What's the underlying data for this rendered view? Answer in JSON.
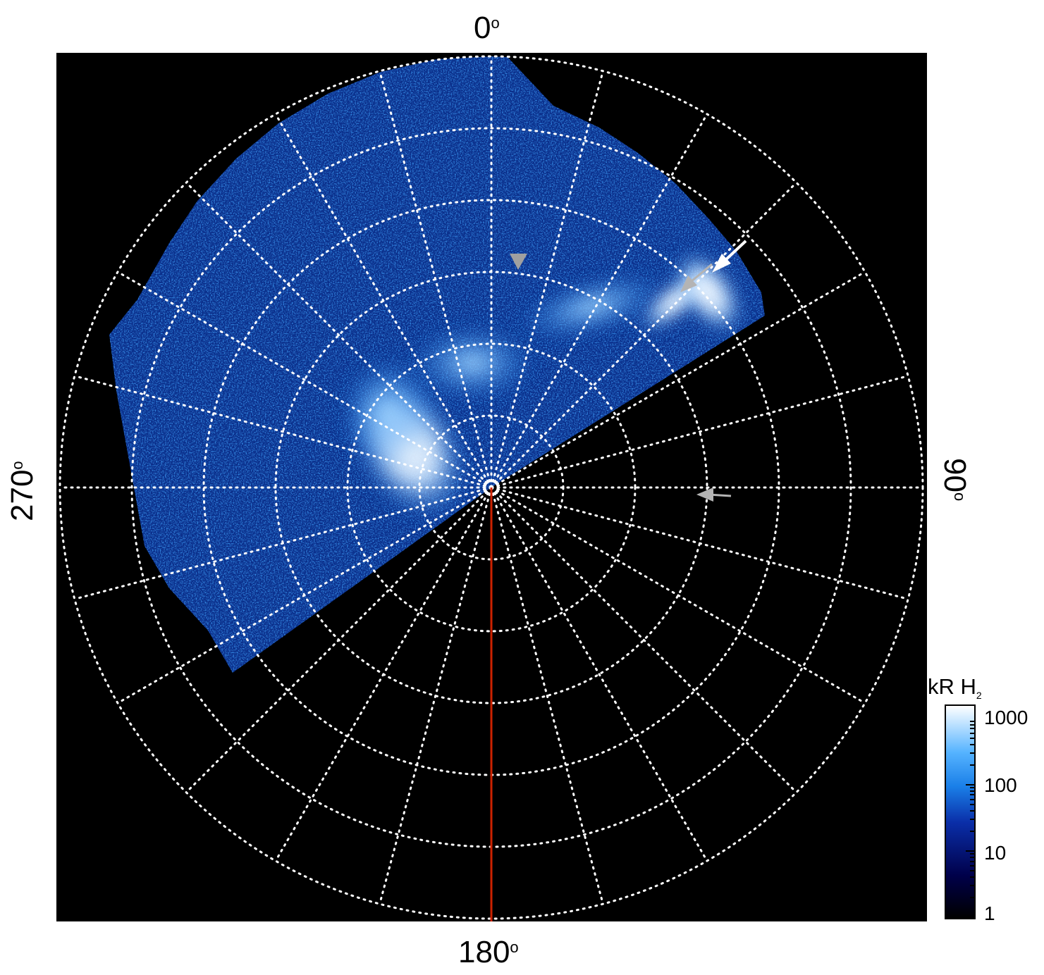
{
  "angle_labels": {
    "top": "0",
    "right": "90",
    "bottom": "180",
    "left": "270",
    "degree_symbol": "o"
  },
  "colorbar": {
    "title": "kR H",
    "title_subscript": "2",
    "ticks": [
      "1000",
      "100",
      "10",
      "1"
    ],
    "scale": "log",
    "colors": [
      "#000000",
      "#00004a",
      "#0a2ea8",
      "#1a7fe8",
      "#55b3ff",
      "#ffffff"
    ]
  },
  "colors": {
    "background": "#000000",
    "grid": "#ffffff",
    "meridian_line": "#cc2200",
    "arrow_white": "#ffffff",
    "arrow_gray": "#b4b4b4"
  }
}
